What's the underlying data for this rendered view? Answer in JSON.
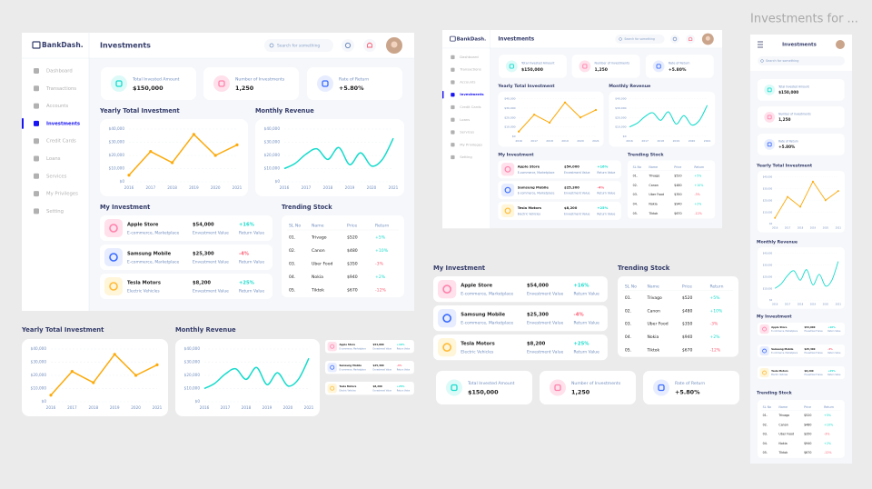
{
  "showcase_title": "Investments for ...",
  "brand": "BankDash.",
  "page_title": "Investments",
  "search_placeholder": "Search for something",
  "nav": {
    "items": [
      "Dashboard",
      "Transactions",
      "Accounts",
      "Investments",
      "Credit Cards",
      "Loans",
      "Services",
      "My Privileges",
      "Setting"
    ],
    "active": "Investments"
  },
  "stats": [
    {
      "label": "Total Invested Amount",
      "value": "$150,000"
    },
    {
      "label": "Number of Investments",
      "value": "1,250"
    },
    {
      "label": "Rate of Return",
      "value": "+5.80%"
    }
  ],
  "chart_data": [
    {
      "type": "line",
      "title": "Yearly Total Investment",
      "x": [
        2016,
        2017,
        2018,
        2019,
        2020,
        2021
      ],
      "values": [
        5000,
        23000,
        14500,
        36000,
        20000,
        28000
      ],
      "color": "#fcaa0b",
      "markers": true,
      "smooth": false,
      "xlim": [
        2016,
        2021
      ],
      "xticks": [
        2016,
        2017,
        2018,
        2019,
        2020,
        2021
      ],
      "ylim": [
        0,
        40000
      ],
      "yticks": [
        {
          "value": 0,
          "label": "$0"
        },
        {
          "value": 10000,
          "label": "$10,000"
        },
        {
          "value": 20000,
          "label": "$20,000"
        },
        {
          "value": 30000,
          "label": "$30,000"
        },
        {
          "value": 40000,
          "label": "$40,000"
        }
      ],
      "grid": true
    },
    {
      "type": "line",
      "title": "Monthly Revenue",
      "x": [
        2016,
        2016.5,
        2017,
        2017.5,
        2018,
        2018.5,
        2019,
        2019.5,
        2020,
        2020.5,
        2021
      ],
      "values": [
        10000,
        14000,
        21000,
        25000,
        17000,
        26000,
        13000,
        22000,
        12000,
        17000,
        33000
      ],
      "color": "#16dbcc",
      "markers": false,
      "smooth": true,
      "xlim": [
        2016,
        2021
      ],
      "xticks": [
        2016,
        2017,
        2018,
        2019,
        2020,
        2021
      ],
      "ylim": [
        0,
        40000
      ],
      "yticks": [
        {
          "value": 0,
          "label": "$0"
        },
        {
          "value": 10000,
          "label": "$10,000"
        },
        {
          "value": 20000,
          "label": "$20,000"
        },
        {
          "value": 30000,
          "label": "$30,000"
        },
        {
          "value": 40000,
          "label": "$40,000"
        }
      ],
      "grid": true
    }
  ],
  "investments": {
    "title": "My Investment",
    "value_label": "Envestment Value",
    "return_label": "Return Value",
    "rows": [
      {
        "name": "Apple Store",
        "category": "E-commerce, Marketplace",
        "value": "$54,000",
        "return": "+16%"
      },
      {
        "name": "Samsung Mobile",
        "category": "E-commerce, Marketplace",
        "value": "$25,300",
        "return": "-4%"
      },
      {
        "name": "Tesla Motors",
        "category": "Electric Vehicles",
        "value": "$8,200",
        "return": "+25%"
      }
    ]
  },
  "trending": {
    "title": "Trending Stock",
    "columns": [
      "SL No",
      "Name",
      "Price",
      "Return"
    ],
    "rows": [
      [
        "01.",
        "Trivago",
        "$520",
        "+5%"
      ],
      [
        "02.",
        "Canon",
        "$480",
        "+10%"
      ],
      [
        "03.",
        "Uber Food",
        "$350",
        "-3%"
      ],
      [
        "04.",
        "Nokia",
        "$940",
        "+2%"
      ],
      [
        "05.",
        "Tiktok",
        "$670",
        "-12%"
      ]
    ]
  }
}
